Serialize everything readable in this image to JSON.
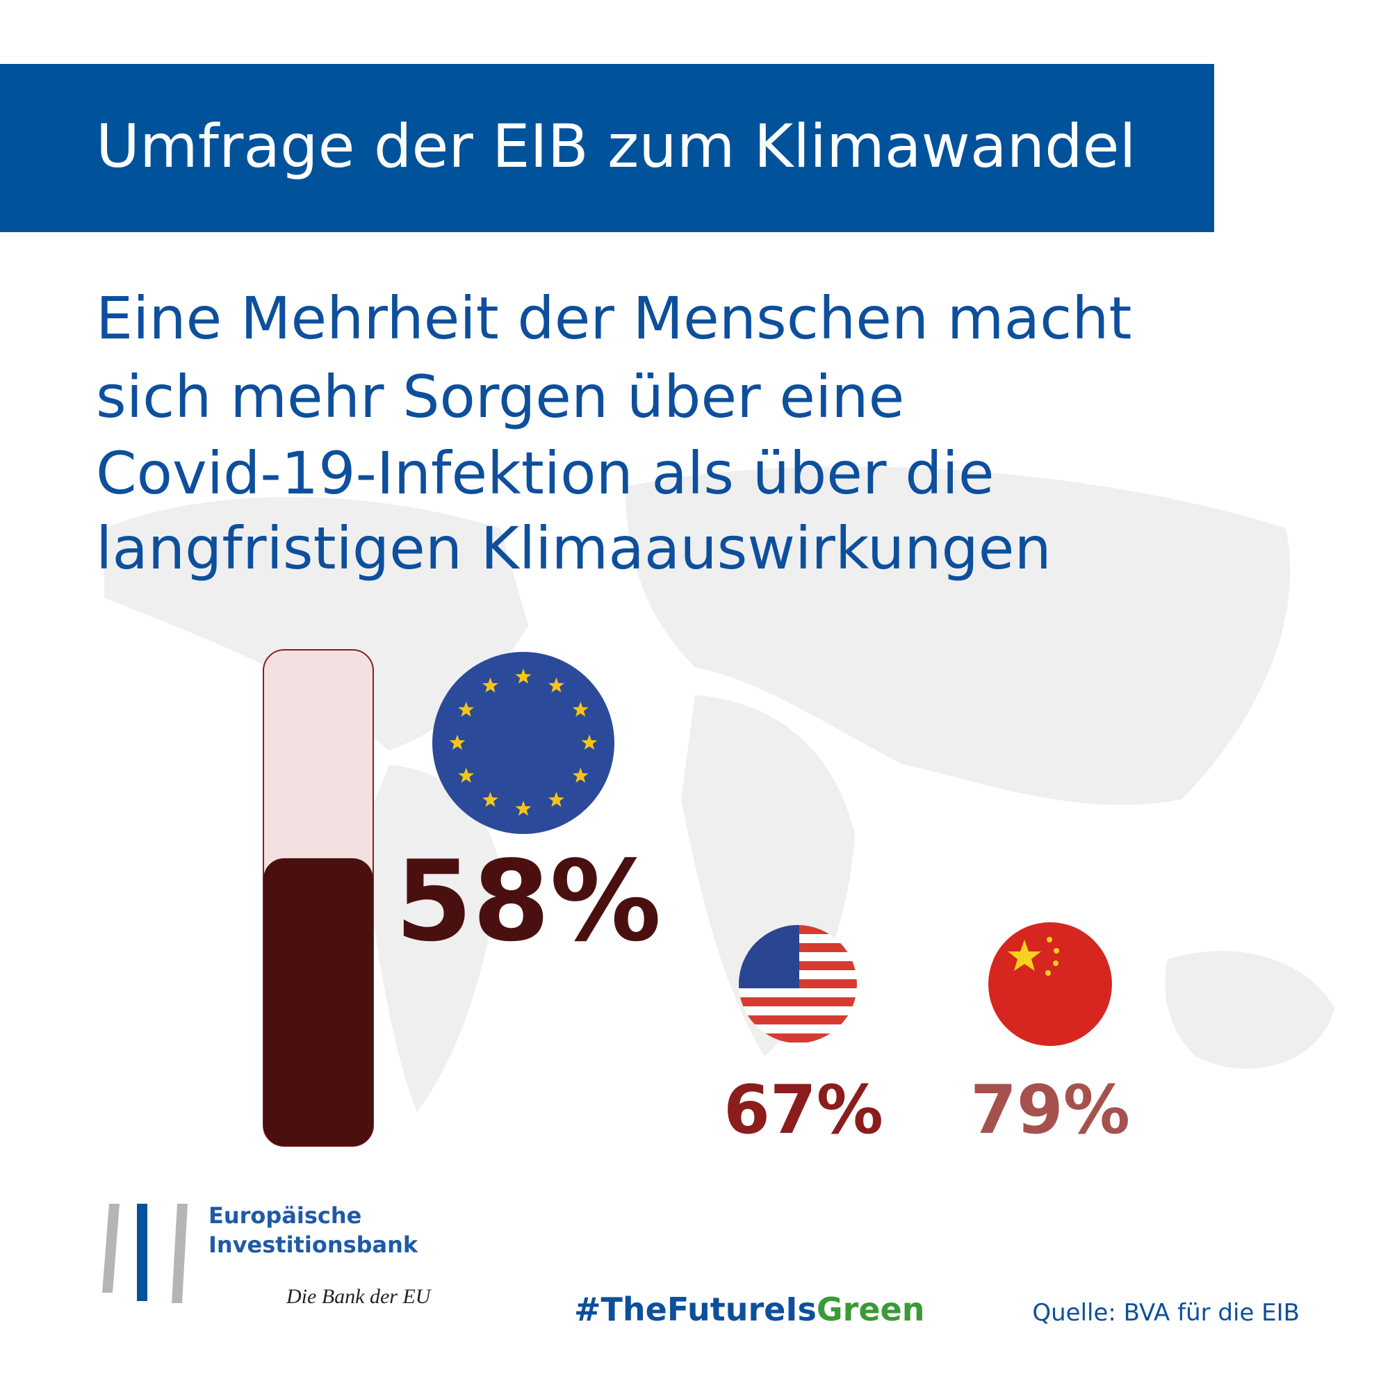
{
  "header": {
    "title": "Umfrage der EIB zum Klimawandel",
    "subtitle": [
      "Eine Mehrheit der Menschen macht",
      "sich mehr Sorgen über eine",
      "Covid-19-Infektion als über die",
      "langfristigen Klimaauswirkungen"
    ]
  },
  "chart_data": {
    "type": "bar",
    "categories": [
      null,
      null,
      null
    ],
    "values": [
      58,
      67,
      79
    ],
    "value_labels": [
      "58%",
      "67%",
      "79%"
    ],
    "colors": [
      "#4a1010",
      "#8b1d1d",
      "#a5524f"
    ],
    "ylim": [
      0,
      100
    ]
  },
  "footer": {
    "logo": [
      "Europäische",
      "Investitionsbank"
    ],
    "slogan": "Die Bank der EU",
    "hashtag": [
      "#TheFutureIs",
      "Green"
    ],
    "source": "Quelle: BVA für die EIB"
  }
}
